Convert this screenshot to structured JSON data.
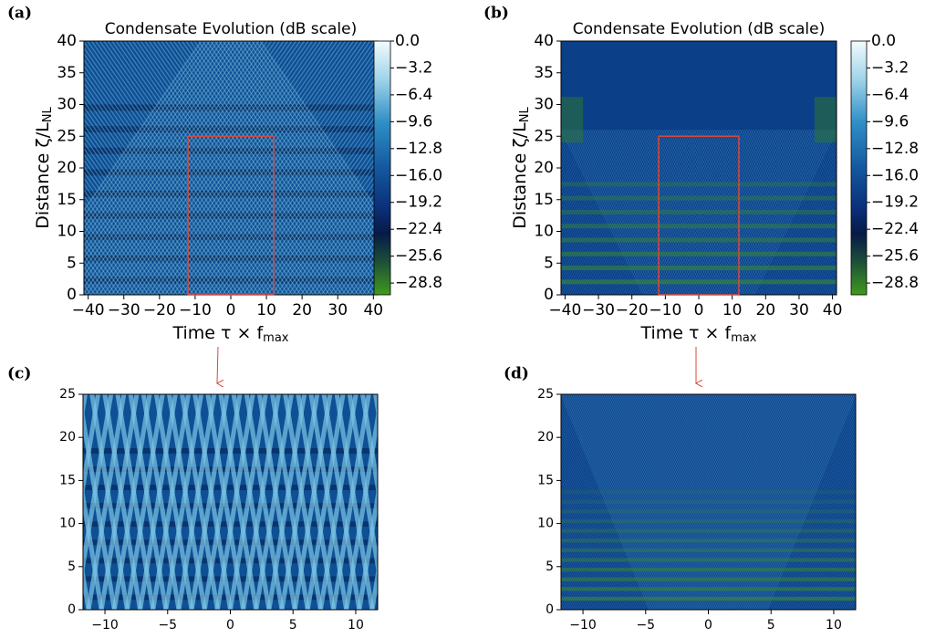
{
  "chart_data": [
    {
      "type": "heatmap",
      "panel_label": "(a)",
      "title": "Condensate Evolution (dB scale)",
      "xlabel": "Time  τ × f",
      "xlabel_subscript": "max",
      "ylabel": "Distance  ζ/L",
      "ylabel_subscript": "NL",
      "xlim": [
        -41.2,
        41.2
      ],
      "ylim": [
        0,
        40
      ],
      "xticks": [
        {
          "value": -40,
          "label": "−40"
        },
        {
          "value": -30,
          "label": "−30"
        },
        {
          "value": -20,
          "label": "−20"
        },
        {
          "value": -10,
          "label": "−10"
        },
        0,
        10,
        20,
        30,
        40
      ],
      "yticks": [
        0,
        5,
        10,
        15,
        20,
        25,
        30,
        35,
        40
      ],
      "clim": [
        -30.2,
        0
      ],
      "cticks": [
        {
          "value": 0,
          "label": "0.0"
        },
        {
          "value": -3.2,
          "label": "−3.2"
        },
        {
          "value": -6.4,
          "label": "−6.4"
        },
        {
          "value": -9.6,
          "label": "−9.6"
        },
        {
          "value": -12.8,
          "label": "−12.8"
        },
        {
          "value": -16.0,
          "label": "−16.0"
        },
        {
          "value": -19.2,
          "label": "−19.2"
        },
        {
          "value": -22.4,
          "label": "−22.4"
        },
        {
          "value": -25.6,
          "label": "−25.6"
        },
        {
          "value": -28.8,
          "label": "−28.8"
        }
      ],
      "zoom_box": {
        "xlim": [
          -12,
          12
        ],
        "ylim": [
          0,
          25
        ]
      }
    },
    {
      "type": "heatmap",
      "panel_label": "(b)",
      "title": "Condensate Evolution (dB scale)",
      "xlabel": "Time  τ × f",
      "xlabel_subscript": "max",
      "ylabel": "Distance  ζ/L",
      "ylabel_subscript": "NL",
      "xlim": [
        -41.2,
        41.2
      ],
      "ylim": [
        0,
        40
      ],
      "xticks": [
        {
          "value": -40,
          "label": "−40"
        },
        {
          "value": -30,
          "label": "−30"
        },
        {
          "value": -20,
          "label": "−20"
        },
        {
          "value": -10,
          "label": "−10"
        },
        0,
        10,
        20,
        30,
        40
      ],
      "yticks": [
        0,
        5,
        10,
        15,
        20,
        25,
        30,
        35,
        40
      ],
      "clim": [
        -30.2,
        0
      ],
      "cticks": [
        {
          "value": 0,
          "label": "0.0"
        },
        {
          "value": -3.2,
          "label": "−3.2"
        },
        {
          "value": -6.4,
          "label": "−6.4"
        },
        {
          "value": -9.6,
          "label": "−9.6"
        },
        {
          "value": -12.8,
          "label": "−12.8"
        },
        {
          "value": -16.0,
          "label": "−16.0"
        },
        {
          "value": -19.2,
          "label": "−19.2"
        },
        {
          "value": -22.4,
          "label": "−22.4"
        },
        {
          "value": -25.6,
          "label": "−25.6"
        },
        {
          "value": -28.8,
          "label": "−28.8"
        }
      ],
      "zoom_box": {
        "xlim": [
          -12,
          12
        ],
        "ylim": [
          0,
          25
        ]
      }
    },
    {
      "type": "heatmap",
      "panel_label": "(c)",
      "xlim": [
        -11.75,
        11.75
      ],
      "ylim": [
        0,
        25
      ],
      "xticks": [
        {
          "value": -10,
          "label": "−10"
        },
        {
          "value": -5,
          "label": "−5"
        },
        0,
        5,
        10
      ],
      "yticks": [
        0,
        5,
        10,
        15,
        20,
        25
      ]
    },
    {
      "type": "heatmap",
      "panel_label": "(d)",
      "xlim": [
        -11.75,
        11.75
      ],
      "ylim": [
        0,
        25
      ],
      "xticks": [
        {
          "value": -10,
          "label": "−10"
        },
        {
          "value": -5,
          "label": "−5"
        },
        0,
        5,
        10
      ],
      "yticks": [
        0,
        5,
        10,
        15,
        20,
        25
      ]
    }
  ]
}
